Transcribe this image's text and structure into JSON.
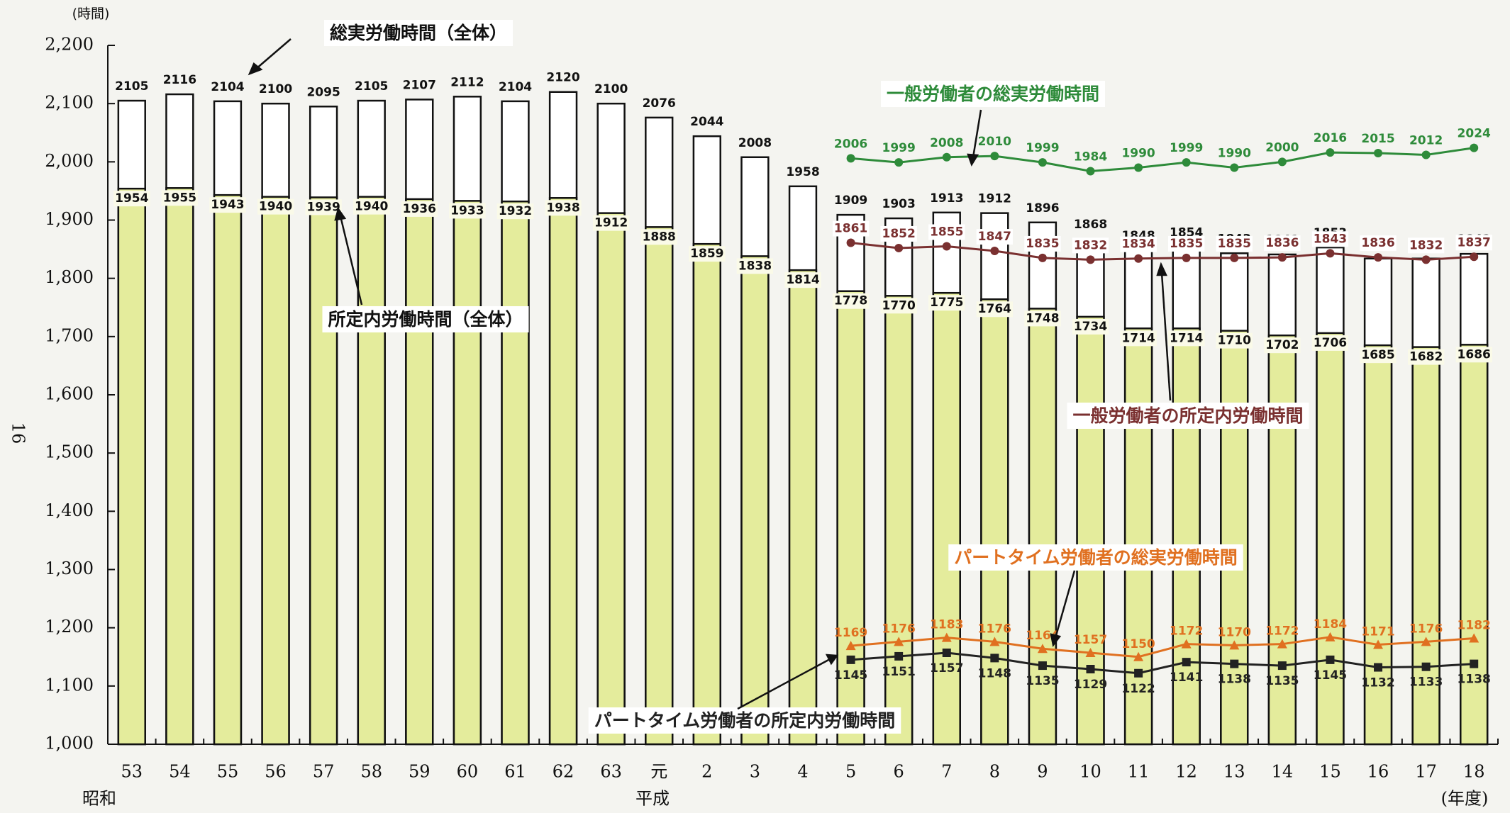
{
  "page_number": "16",
  "chart_data": {
    "type": "bar",
    "y_unit": "(時間)",
    "era_labels": [
      "昭和",
      "平成"
    ],
    "x_unit": "(年度)",
    "categories": [
      "53",
      "54",
      "55",
      "56",
      "57",
      "58",
      "59",
      "60",
      "61",
      "62",
      "63",
      "元",
      "2",
      "3",
      "4",
      "5",
      "6",
      "7",
      "8",
      "9",
      "10",
      "11",
      "12",
      "13",
      "14",
      "15",
      "16",
      "17",
      "18"
    ],
    "ylim": [
      1000,
      2200
    ],
    "yticks": [
      {
        "value": 1000,
        "label": "1,000"
      },
      {
        "value": 1100,
        "label": "1,100"
      },
      {
        "value": 1200,
        "label": "1,200"
      },
      {
        "value": 1300,
        "label": "1,300"
      },
      {
        "value": 1400,
        "label": "1,400"
      },
      {
        "value": 1500,
        "label": "1,500"
      },
      {
        "value": 1600,
        "label": "1,600"
      },
      {
        "value": 1700,
        "label": "1,700"
      },
      {
        "value": 1800,
        "label": "1,800"
      },
      {
        "value": 1900,
        "label": "1,900"
      },
      {
        "value": 2000,
        "label": "2,000"
      },
      {
        "value": 2100,
        "label": "2,100"
      },
      {
        "value": 2200,
        "label": "2,200"
      }
    ],
    "series": [
      {
        "name": "総実労働時間（全体）",
        "type": "bar",
        "color": "#ffffff",
        "values": [
          2105,
          2116,
          2104,
          2100,
          2095,
          2105,
          2107,
          2112,
          2104,
          2120,
          2100,
          2076,
          2044,
          2008,
          1958,
          1909,
          1903,
          1913,
          1912,
          1896,
          1868,
          1848,
          1854,
          1843,
          1841,
          1853,
          1834,
          1834,
          1842
        ]
      },
      {
        "name": "所定内労働時間（全体）",
        "type": "bar",
        "color": "#e4ec9c",
        "values": [
          1954,
          1955,
          1943,
          1940,
          1939,
          1940,
          1936,
          1933,
          1932,
          1938,
          1912,
          1888,
          1859,
          1838,
          1814,
          1778,
          1770,
          1775,
          1764,
          1748,
          1734,
          1714,
          1714,
          1710,
          1702,
          1706,
          1685,
          1682,
          1686
        ]
      },
      {
        "name": "一般労働者の総実労働時間",
        "type": "line",
        "marker": "circle",
        "color": "#2e8b3a",
        "values": [
          null,
          null,
          null,
          null,
          null,
          null,
          null,
          null,
          null,
          null,
          null,
          null,
          null,
          null,
          null,
          2006,
          1999,
          2008,
          2010,
          1999,
          1984,
          1990,
          1999,
          1990,
          2000,
          2016,
          2015,
          2012,
          2024
        ]
      },
      {
        "name": "一般労働者の所定内労働時間",
        "type": "line",
        "marker": "circle",
        "color": "#7a3030",
        "values": [
          null,
          null,
          null,
          null,
          null,
          null,
          null,
          null,
          null,
          null,
          null,
          null,
          null,
          null,
          null,
          1861,
          1852,
          1855,
          1847,
          1835,
          1832,
          1834,
          1835,
          1835,
          1836,
          1843,
          1836,
          1832,
          1837
        ]
      },
      {
        "name": "パートタイム労働者の総実労働時間",
        "type": "line",
        "marker": "triangle",
        "color": "#e07020",
        "values": [
          null,
          null,
          null,
          null,
          null,
          null,
          null,
          null,
          null,
          null,
          null,
          null,
          null,
          null,
          null,
          1169,
          1176,
          1183,
          1176,
          1164,
          1157,
          1150,
          1172,
          1170,
          1172,
          1184,
          1171,
          1176,
          1182
        ]
      },
      {
        "name": "パートタイム労働者の所定内労働時間",
        "type": "line",
        "marker": "square",
        "color": "#222222",
        "values": [
          null,
          null,
          null,
          null,
          null,
          null,
          null,
          null,
          null,
          null,
          null,
          null,
          null,
          null,
          null,
          1145,
          1151,
          1157,
          1148,
          1135,
          1129,
          1122,
          1141,
          1138,
          1135,
          1145,
          1132,
          1133,
          1138
        ]
      }
    ]
  }
}
